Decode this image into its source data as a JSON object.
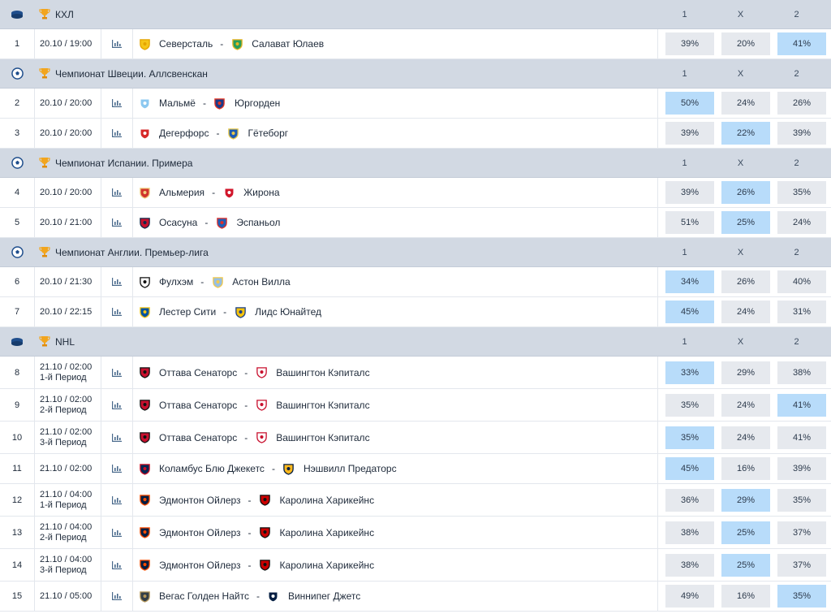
{
  "odds_headers": [
    "1",
    "X",
    "2"
  ],
  "colors": {
    "header_bg": "#d2d9e3",
    "odd_bg": "#e6e9ee",
    "odd_highlight": "#b8dcfa",
    "trophy": "#f2a51e"
  },
  "leagues": [
    {
      "name": "КХЛ",
      "sport_icon": "hockey-puck-icon",
      "matches": [
        {
          "num": "1",
          "date": "20.10 / 19:00",
          "period": "",
          "home": "Северсталь",
          "home_icon": "severstal-logo-icon",
          "away": "Салават Юлаев",
          "away_icon": "salavat-logo-icon",
          "odds": [
            "39%",
            "20%",
            "41%"
          ],
          "hl": 2
        }
      ]
    },
    {
      "name": "Чемпионат Швеции. Аллсвенскан",
      "sport_icon": "soccer-ball-icon",
      "matches": [
        {
          "num": "2",
          "date": "20.10 / 20:00",
          "period": "",
          "home": "Мальмё",
          "home_icon": "malmo-logo-icon",
          "away": "Юргорден",
          "away_icon": "djurgarden-logo-icon",
          "odds": [
            "50%",
            "24%",
            "26%"
          ],
          "hl": 0
        },
        {
          "num": "3",
          "date": "20.10 / 20:00",
          "period": "",
          "home": "Дегерфорс",
          "home_icon": "degerfors-logo-icon",
          "away": "Гётеборг",
          "away_icon": "goteborg-logo-icon",
          "odds": [
            "39%",
            "22%",
            "39%"
          ],
          "hl": 1
        }
      ]
    },
    {
      "name": "Чемпионат Испании. Примера",
      "sport_icon": "soccer-ball-icon",
      "matches": [
        {
          "num": "4",
          "date": "20.10 / 20:00",
          "period": "",
          "home": "Альмерия",
          "home_icon": "almeria-logo-icon",
          "away": "Жирона",
          "away_icon": "girona-logo-icon",
          "odds": [
            "39%",
            "26%",
            "35%"
          ],
          "hl": 1
        },
        {
          "num": "5",
          "date": "20.10 / 21:00",
          "period": "",
          "home": "Осасуна",
          "home_icon": "osasuna-logo-icon",
          "away": "Эспаньол",
          "away_icon": "espanyol-logo-icon",
          "odds": [
            "51%",
            "25%",
            "24%"
          ],
          "hl": 1
        }
      ]
    },
    {
      "name": "Чемпионат Англии. Премьер-лига",
      "sport_icon": "soccer-ball-icon",
      "matches": [
        {
          "num": "6",
          "date": "20.10 / 21:30",
          "period": "",
          "home": "Фулхэм",
          "home_icon": "fulham-logo-icon",
          "away": "Астон Вилла",
          "away_icon": "aston-villa-logo-icon",
          "odds": [
            "34%",
            "26%",
            "40%"
          ],
          "hl": 0
        },
        {
          "num": "7",
          "date": "20.10 / 22:15",
          "period": "",
          "home": "Лестер Сити",
          "home_icon": "leicester-logo-icon",
          "away": "Лидс Юнайтед",
          "away_icon": "leeds-logo-icon",
          "odds": [
            "45%",
            "24%",
            "31%"
          ],
          "hl": 0
        }
      ]
    },
    {
      "name": "NHL",
      "sport_icon": "hockey-puck-icon",
      "matches": [
        {
          "num": "8",
          "date": "21.10 / 02:00",
          "period": "1-й Период",
          "home": "Оттава Сенаторс",
          "home_icon": "ottawa-logo-icon",
          "away": "Вашингтон Кэпиталс",
          "away_icon": "washington-logo-icon",
          "odds": [
            "33%",
            "29%",
            "38%"
          ],
          "hl": 0
        },
        {
          "num": "9",
          "date": "21.10 / 02:00",
          "period": "2-й Период",
          "home": "Оттава Сенаторс",
          "home_icon": "ottawa-logo-icon",
          "away": "Вашингтон Кэпиталс",
          "away_icon": "washington-logo-icon",
          "odds": [
            "35%",
            "24%",
            "41%"
          ],
          "hl": 2
        },
        {
          "num": "10",
          "date": "21.10 / 02:00",
          "period": "3-й Период",
          "home": "Оттава Сенаторс",
          "home_icon": "ottawa-logo-icon",
          "away": "Вашингтон Кэпиталс",
          "away_icon": "washington-logo-icon",
          "odds": [
            "35%",
            "24%",
            "41%"
          ],
          "hl": 0
        },
        {
          "num": "11",
          "date": "21.10 / 02:00",
          "period": "",
          "home": "Коламбус Блю Джекетс",
          "home_icon": "columbus-logo-icon",
          "away": "Нэшвилл Предаторс",
          "away_icon": "nashville-logo-icon",
          "odds": [
            "45%",
            "16%",
            "39%"
          ],
          "hl": 0
        },
        {
          "num": "12",
          "date": "21.10 / 04:00",
          "period": "1-й Период",
          "home": "Эдмонтон Ойлерз",
          "home_icon": "edmonton-logo-icon",
          "away": "Каролина Харикейнс",
          "away_icon": "carolina-logo-icon",
          "odds": [
            "36%",
            "29%",
            "35%"
          ],
          "hl": 1
        },
        {
          "num": "13",
          "date": "21.10 / 04:00",
          "period": "2-й Период",
          "home": "Эдмонтон Ойлерз",
          "home_icon": "edmonton-logo-icon",
          "away": "Каролина Харикейнс",
          "away_icon": "carolina-logo-icon",
          "odds": [
            "38%",
            "25%",
            "37%"
          ],
          "hl": 1
        },
        {
          "num": "14",
          "date": "21.10 / 04:00",
          "period": "3-й Период",
          "home": "Эдмонтон Ойлерз",
          "home_icon": "edmonton-logo-icon",
          "away": "Каролина Харикейнс",
          "away_icon": "carolina-logo-icon",
          "odds": [
            "38%",
            "25%",
            "37%"
          ],
          "hl": 1
        },
        {
          "num": "15",
          "date": "21.10 / 05:00",
          "period": "",
          "home": "Вегас Голден Найтс",
          "home_icon": "vegas-logo-icon",
          "away": "Виннипег Джетс",
          "away_icon": "winnipeg-logo-icon",
          "odds": [
            "49%",
            "16%",
            "35%"
          ],
          "hl": 2
        }
      ]
    }
  ]
}
